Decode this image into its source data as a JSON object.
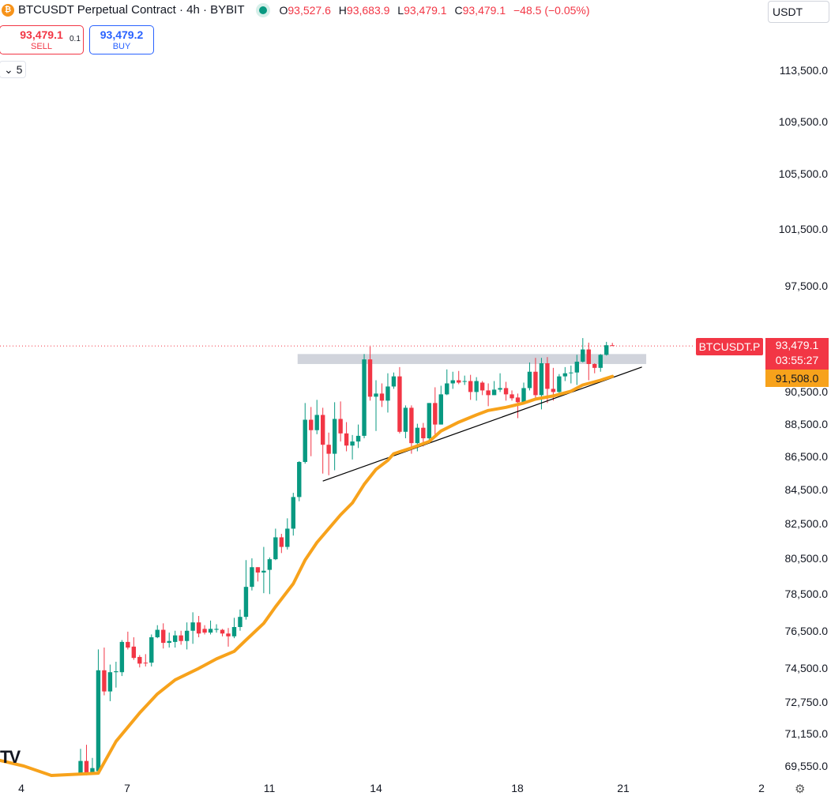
{
  "header": {
    "symbol_icon": "bitcoin-icon",
    "title": "BTCUSDT Perpetual Contract · 4h · BYBIT",
    "status": "market-open-dot",
    "ohlc": [
      {
        "k": "O",
        "v": "93,527.6"
      },
      {
        "k": "H",
        "v": "93,683.9"
      },
      {
        "k": "L",
        "v": "93,479.1"
      },
      {
        "k": "C",
        "v": "93,479.1"
      }
    ],
    "change": "−48.5 (−0.05%)"
  },
  "trade": {
    "sell_price": "93,479.1",
    "sell_label": "SELL",
    "spread": "0.1",
    "buy_price": "93,479.2",
    "buy_label": "BUY"
  },
  "indicators_toggle": "5",
  "currency": "USDT",
  "colors": {
    "up": "#089981",
    "down": "#f23645",
    "ma": "#f7a21b",
    "zone": "#d1d4dc",
    "trend": "#000000"
  },
  "chart_data": {
    "type": "candlestick",
    "scale": "log",
    "ylim": [
      69000,
      116000
    ],
    "y_ticks": [
      113500,
      109500,
      105500,
      101500,
      97500,
      90500,
      88500,
      86500,
      84500,
      82500,
      80500,
      78500,
      76500,
      74500,
      72750,
      71150,
      69550
    ],
    "y_tick_labels": [
      "113,500.0",
      "109,500.0",
      "105,500.0",
      "101,500.0",
      "97,500.0",
      "90,500.0",
      "88,500.0",
      "86,500.0",
      "84,500.0",
      "82,500.0",
      "80,500.0",
      "78,500.0",
      "76,500.0",
      "74,500.0",
      "72,750.0",
      "71,150.0",
      "69,550.0"
    ],
    "x_ticks": [
      "4",
      "7",
      "11",
      "14",
      "18",
      "21",
      "2"
    ],
    "last_price": {
      "symbol": "BTCUSDT.P",
      "price": "93,479.1",
      "countdown": "03:55:27",
      "value": 93479.1
    },
    "ma_label": {
      "price": "91,508.0",
      "value": 91508
    },
    "candles": [
      [
        69200,
        70400,
        69200,
        69800
      ],
      [
        69800,
        70600,
        69100,
        69200
      ],
      [
        69200,
        69950,
        69150,
        69450
      ],
      [
        69300,
        75500,
        69200,
        74400
      ],
      [
        74400,
        75600,
        73100,
        73300
      ],
      [
        73300,
        74700,
        72800,
        74300
      ],
      [
        74300,
        74850,
        73500,
        74350
      ],
      [
        74300,
        76000,
        74100,
        75900
      ],
      [
        75900,
        76450,
        75500,
        75600
      ],
      [
        75650,
        76150,
        74950,
        75050
      ],
      [
        75100,
        75200,
        74550,
        74750
      ],
      [
        74800,
        75250,
        74600,
        74780
      ],
      [
        74800,
        76300,
        74600,
        76150
      ],
      [
        76150,
        76800,
        76100,
        76550
      ],
      [
        76550,
        76900,
        75550,
        75850
      ],
      [
        75850,
        76400,
        75600,
        75950
      ],
      [
        75900,
        76500,
        75600,
        76250
      ],
      [
        76250,
        76500,
        75750,
        75950
      ],
      [
        75950,
        76950,
        75500,
        76500
      ],
      [
        76500,
        77500,
        75800,
        76950
      ],
      [
        76950,
        77300,
        76150,
        76350
      ],
      [
        76600,
        76800,
        76300,
        76400
      ],
      [
        76400,
        77050,
        76300,
        76600
      ],
      [
        76550,
        76850,
        76400,
        76600
      ],
      [
        76550,
        76600,
        76200,
        76350
      ],
      [
        76350,
        76650,
        75650,
        76200
      ],
      [
        76200,
        77200,
        76100,
        76700
      ],
      [
        76700,
        77650,
        76500,
        77250
      ],
      [
        77250,
        80400,
        77100,
        78900
      ],
      [
        78900,
        80500,
        78700,
        80000
      ],
      [
        80000,
        80000,
        79200,
        79700
      ],
      [
        79700,
        81150,
        78550,
        79800
      ],
      [
        79850,
        80550,
        78500,
        80450
      ],
      [
        80450,
        82200,
        80400,
        81700
      ],
      [
        81700,
        81900,
        80800,
        81150
      ],
      [
        81150,
        82800,
        81000,
        82200
      ],
      [
        82200,
        84300,
        81800,
        84050
      ],
      [
        84050,
        86200,
        83800,
        86150
      ],
      [
        86150,
        89800,
        86050,
        88750
      ],
      [
        88750,
        89550,
        86500,
        88100
      ],
      [
        88100,
        90000,
        87850,
        89050
      ],
      [
        89050,
        89500,
        85450,
        87200
      ],
      [
        87200,
        87950,
        85350,
        86650
      ],
      [
        86650,
        89850,
        85650,
        88800
      ],
      [
        88800,
        89900,
        87400,
        87900
      ],
      [
        87900,
        88600,
        86800,
        87150
      ],
      [
        87150,
        87800,
        86300,
        87400
      ],
      [
        87400,
        88450,
        87000,
        87750
      ],
      [
        87750,
        92950,
        87600,
        92600
      ],
      [
        92600,
        93450,
        89950,
        90200
      ],
      [
        90200,
        91250,
        88050,
        90400
      ],
      [
        90400,
        91050,
        89550,
        89950
      ],
      [
        89950,
        91700,
        89200,
        90850
      ],
      [
        90850,
        91750,
        90700,
        91500
      ],
      [
        91500,
        92100,
        87900,
        88000
      ],
      [
        88000,
        89650,
        87600,
        89500
      ],
      [
        89500,
        89650,
        86650,
        87300
      ],
      [
        87300,
        88500,
        86800,
        88250
      ],
      [
        88250,
        88550,
        87100,
        87600
      ],
      [
        87600,
        89800,
        87300,
        89800
      ],
      [
        89800,
        90800,
        87800,
        88450
      ],
      [
        88450,
        90900,
        88450,
        90350
      ],
      [
        90350,
        91950,
        90300,
        91050
      ],
      [
        91050,
        91800,
        90700,
        91250
      ],
      [
        91250,
        91850,
        91000,
        91100
      ],
      [
        91150,
        91550,
        90950,
        91200
      ],
      [
        91200,
        91600,
        90000,
        90500
      ],
      [
        90500,
        91450,
        89950,
        91200
      ],
      [
        91100,
        91200,
        90300,
        90600
      ],
      [
        90600,
        91050,
        89600,
        90300
      ],
      [
        90300,
        91200,
        90300,
        90650
      ],
      [
        90650,
        91700,
        90500,
        90750
      ],
      [
        90750,
        91150,
        89950,
        90350
      ],
      [
        90350,
        90600,
        89950,
        90100
      ],
      [
        90150,
        90400,
        88850,
        89850
      ],
      [
        89850,
        91100,
        89700,
        90750
      ],
      [
        90750,
        92400,
        90600,
        91800
      ],
      [
        91800,
        92700,
        89950,
        90300
      ],
      [
        90300,
        92700,
        89400,
        92350
      ],
      [
        92350,
        92750,
        89800,
        90700
      ],
      [
        90700,
        92050,
        89950,
        90500
      ],
      [
        90500,
        91650,
        90300,
        91500
      ],
      [
        91500,
        92100,
        91200,
        91700
      ],
      [
        91700,
        92200,
        91050,
        91750
      ],
      [
        91750,
        92900,
        90950,
        92450
      ],
      [
        92450,
        94000,
        92400,
        93250
      ],
      [
        93250,
        93700,
        91250,
        92300
      ],
      [
        92300,
        92350,
        91700,
        92050
      ],
      [
        92050,
        92950,
        91800,
        92900
      ],
      [
        92900,
        93750,
        92850,
        93527.6
      ],
      [
        93527.6,
        93683.9,
        93479.1,
        93479.1
      ]
    ],
    "ma": [
      [
        3,
        69200
      ],
      [
        6,
        70770
      ],
      [
        10,
        72200
      ],
      [
        13,
        73170
      ],
      [
        16,
        73900
      ],
      [
        20,
        74500
      ],
      [
        23,
        75000
      ],
      [
        26,
        75400
      ],
      [
        28,
        76000
      ],
      [
        31,
        76900
      ],
      [
        33,
        77800
      ],
      [
        36,
        79080
      ],
      [
        38,
        80400
      ],
      [
        40,
        81400
      ],
      [
        42,
        82200
      ],
      [
        44,
        83000
      ],
      [
        46,
        83700
      ],
      [
        48,
        84800
      ],
      [
        50,
        85700
      ],
      [
        52,
        86250
      ],
      [
        53,
        86650
      ],
      [
        56,
        87000
      ],
      [
        59,
        87400
      ],
      [
        61,
        88050
      ],
      [
        64,
        88600
      ],
      [
        67,
        89050
      ],
      [
        69,
        89330
      ],
      [
        72,
        89530
      ],
      [
        75,
        89800
      ],
      [
        77,
        90050
      ],
      [
        80,
        90250
      ],
      [
        83,
        90550
      ],
      [
        85,
        90950
      ],
      [
        88,
        91250
      ],
      [
        90,
        91500
      ]
    ],
    "trendline": [
      [
        41,
        85000
      ],
      [
        95,
        92100
      ]
    ],
    "resistance_zone": {
      "from_bar": 37,
      "to_bar": 96,
      "low": 92300,
      "high": 92950
    }
  }
}
